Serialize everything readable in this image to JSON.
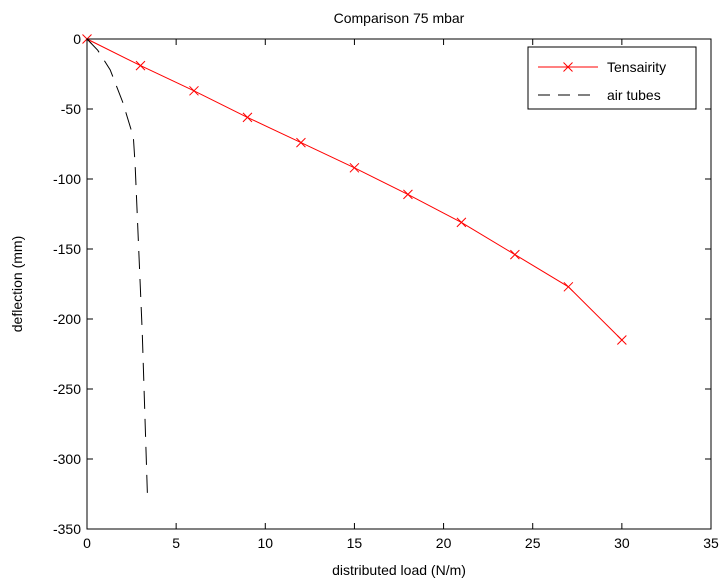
{
  "chart_data": {
    "type": "line",
    "title": "Comparison 75 mbar",
    "xlabel": "distributed load (N/m)",
    "ylabel": "deflection (mm)",
    "xlim": [
      0,
      35
    ],
    "ylim": [
      -350,
      0
    ],
    "x_ticks": [
      0,
      5,
      10,
      15,
      20,
      25,
      30,
      35
    ],
    "y_ticks": [
      0,
      -50,
      -100,
      -150,
      -200,
      -250,
      -300,
      -350
    ],
    "x_tick_labels": [
      "0",
      "5",
      "10",
      "15",
      "20",
      "25",
      "30",
      "35"
    ],
    "y_tick_labels": [
      "0",
      "-50",
      "-100",
      "-150",
      "-200",
      "-250",
      "-300",
      "-350"
    ],
    "grid": false,
    "legend_position": "top-right",
    "series": [
      {
        "name": "Tensairity",
        "color": "#ff0000",
        "line_style": "solid",
        "marker": "x",
        "x": [
          0,
          3,
          6,
          9,
          12,
          15,
          18,
          21,
          24,
          27,
          30
        ],
        "y": [
          0,
          -19,
          -37,
          -56,
          -74,
          -92,
          -111,
          -131,
          -154,
          -177,
          -215
        ]
      },
      {
        "name": "air tubes",
        "color": "#000000",
        "line_style": "dashed",
        "marker": "none",
        "x": [
          0,
          0.6,
          1.3,
          2,
          2.6,
          2.7,
          2.8,
          2.9,
          3.0,
          3.1,
          3.2,
          3.3,
          3.4
        ],
        "y": [
          0,
          -8,
          -22,
          -45,
          -70,
          -90,
          -120,
          -150,
          -180,
          -210,
          -250,
          -290,
          -330
        ]
      }
    ]
  }
}
